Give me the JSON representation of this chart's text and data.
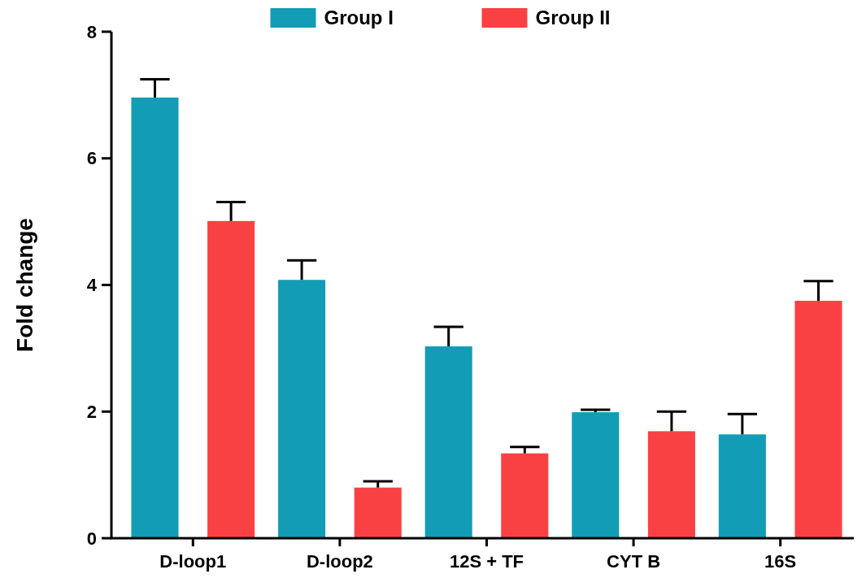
{
  "chart_data": {
    "type": "bar",
    "ylabel": "Fold change",
    "categories": [
      "D-loop1",
      "D-loop2",
      "12S + TF",
      "CYT B",
      "16S"
    ],
    "series": [
      {
        "name": "Group I",
        "color": "#139cb5",
        "values": [
          6.96,
          4.08,
          3.03,
          1.99,
          1.64
        ],
        "errors": [
          [
            6.96,
            7.25
          ],
          [
            4.08,
            4.39
          ],
          [
            3.03,
            3.34
          ],
          [
            1.99,
            2.03
          ],
          [
            1.64,
            1.96
          ]
        ]
      },
      {
        "name": "Group II",
        "color": "#f94144",
        "values": [
          5.01,
          0.8,
          1.34,
          1.69,
          3.75
        ],
        "errors": [
          [
            5.01,
            5.31
          ],
          [
            0.8,
            0.9
          ],
          [
            1.34,
            1.44
          ],
          [
            1.69,
            2.0
          ],
          [
            3.75,
            4.06
          ]
        ]
      }
    ],
    "ylim": [
      0,
      8
    ],
    "yticks": [
      0,
      2,
      4,
      6,
      8
    ],
    "grid": false,
    "legend": "top"
  }
}
